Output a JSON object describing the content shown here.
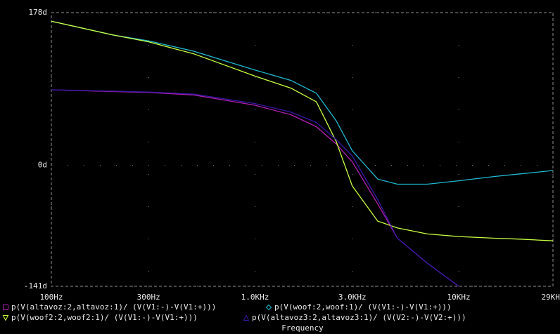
{
  "chart_data": {
    "type": "line",
    "x_label": "Frequency",
    "log_x": true,
    "grid": true,
    "x": [
      100,
      200,
      300,
      500,
      1000,
      1500,
      2000,
      2500,
      3000,
      4000,
      5000,
      7000,
      10000,
      15000,
      20000,
      29000
    ],
    "xlim": [
      100,
      29000
    ],
    "xticks": [
      {
        "value": 100,
        "label": "100Hz"
      },
      {
        "value": 300,
        "label": "300Hz"
      },
      {
        "value": 1000,
        "label": "1.0KHz"
      },
      {
        "value": 3000,
        "label": "3.0KHz"
      },
      {
        "value": 10000,
        "label": "10KHz"
      },
      {
        "value": 29000,
        "label": "29KHz"
      }
    ],
    "ylim": [
      -141,
      178
    ],
    "yticks": [
      {
        "value": -141,
        "label": "-141d"
      },
      {
        "value": 0,
        "label": "0d"
      },
      {
        "value": 178,
        "label": "178d"
      }
    ],
    "series": [
      {
        "name": "p(V(altavoz:2,altavoz:1)/ (V(V1:-)-V(V1:+)))",
        "color": "#b020b0",
        "marker": "square",
        "values": [
          88,
          86,
          85,
          82,
          70,
          59,
          45,
          25,
          4,
          -45,
          -85,
          -114,
          -141,
          null,
          null,
          null
        ]
      },
      {
        "name": "p(V(woof:2,woof:1)/ (V(V1:-)-V(V1:+)))",
        "color": "#20b8d0",
        "marker": "diamond",
        "values": [
          168,
          152,
          145,
          133,
          111,
          99,
          84,
          52,
          17,
          -16,
          -22,
          -22,
          -18,
          -13,
          -10,
          -6
        ]
      },
      {
        "name": "p(V(woof2:2,woof2:1)/ (V(V1:-)-V(V1:+)))",
        "color": "#c8ff40",
        "marker": "triangle-down",
        "values": [
          168,
          152,
          144,
          130,
          104,
          90,
          74,
          28,
          -24,
          -65,
          -73,
          -80,
          -83,
          -85,
          -86,
          -88
        ]
      },
      {
        "name": "p(V(altavoz3:2,altavoz3:1)/ (V(V2:-)-V(V2:+)))",
        "color": "#3818a8",
        "marker": "triangle-up",
        "values": [
          88,
          86.5,
          85.5,
          83,
          72,
          62,
          50,
          30,
          11,
          -40,
          -85,
          -114,
          -141,
          null,
          null,
          null
        ]
      }
    ]
  }
}
